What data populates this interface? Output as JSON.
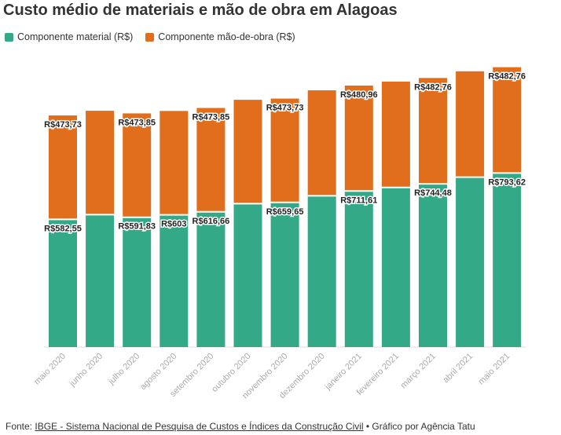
{
  "chart_data": {
    "type": "bar",
    "stacked": true,
    "title": "Custo médio de materiais e mão de obra em Alagoas",
    "categories": [
      "maio 2020",
      "junho 2020",
      "julho 2020",
      "agosto 2020",
      "setembro 2020",
      "outubro 2020",
      "novembro 2020",
      "dezembro 2020",
      "janeiro 2021",
      "fevereiro 2021",
      "março 2021",
      "abril 2021",
      "maio 2021"
    ],
    "series": [
      {
        "name": "Componente material (R$)",
        "color": "#34a987",
        "values": [
          582.55,
          604,
          591.83,
          603,
          616.66,
          654,
          659.65,
          690,
          711.61,
          728,
          744.48,
          775,
          793.62
        ],
        "labels": [
          "R$582,55",
          null,
          "R$591,83",
          "R$603",
          "R$616,66",
          null,
          "R$659,65",
          null,
          "R$711,61",
          null,
          "R$744,48",
          null,
          "R$793,62"
        ]
      },
      {
        "name": "Componente mão-de-obra (R$)",
        "color": "#e06e1d",
        "values": [
          473.73,
          473.73,
          473.85,
          473.85,
          473.85,
          473.73,
          473.73,
          480.96,
          480.96,
          482.76,
          482.76,
          482.76,
          482.76
        ],
        "labels": [
          "R$473,73",
          null,
          "R$473,85",
          null,
          "R$473,85",
          null,
          "R$473,73",
          null,
          "R$480,96",
          null,
          "R$482,76",
          null,
          "R$482,76"
        ]
      }
    ],
    "ylim": [
      0,
      1300
    ],
    "xlabel": "",
    "ylabel": ""
  },
  "legend": {
    "material": "Componente material (R$)",
    "labor": "Componente mão-de-obra (R$)"
  },
  "source": {
    "prefix": "Fonte: ",
    "link": "IBGE - Sistema Nacional de Pesquisa de Custos e Índices da Construção Civil",
    "suffix": " • Gráfico por Agência Tatu"
  }
}
